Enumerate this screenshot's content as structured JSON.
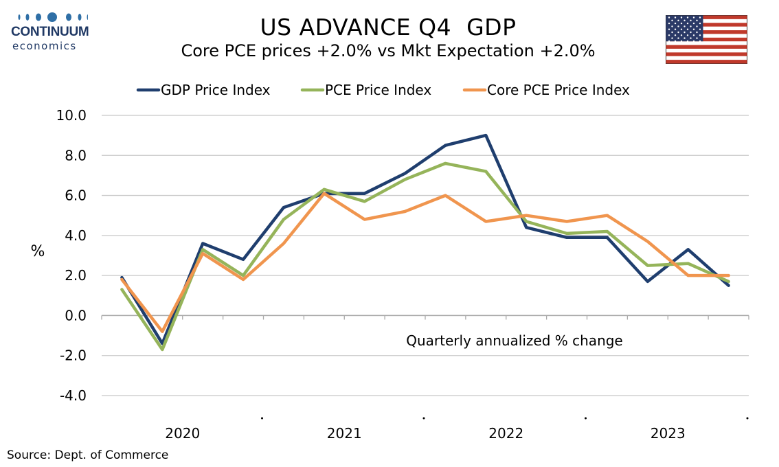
{
  "logo": {
    "brand_line1": "CONTINUUM",
    "brand_line2": "economics"
  },
  "title": "US ADVANCE Q4  GDP",
  "subtitle": "Core PCE prices +2.0% vs Mkt Expectation +2.0%",
  "source": "Source: Dept. of Commerce",
  "chart_data": {
    "type": "line",
    "ylabel": "%",
    "xlabel": "",
    "annotation": "Quarterly annualized % change",
    "ylim": [
      -4.0,
      10.0
    ],
    "yticks": [
      "10.0",
      "8.0",
      "6.0",
      "4.0",
      "2.0",
      "0.0",
      "-2.0",
      "-4.0"
    ],
    "x": [
      "2020 Q1",
      "2020 Q2",
      "2020 Q3",
      "2020 Q4",
      "2021 Q1",
      "2021 Q2",
      "2021 Q3",
      "2021 Q4",
      "2022 Q1",
      "2022 Q2",
      "2022 Q3",
      "2022 Q4",
      "2023 Q1",
      "2023 Q2",
      "2023 Q3",
      "2023 Q4"
    ],
    "year_labels": [
      "2020",
      "2021",
      "2022",
      "2023"
    ],
    "grid": true,
    "legend_position": "top",
    "series": [
      {
        "name": "GDP Price Index",
        "color": "#1f3e6e",
        "values": [
          1.9,
          -1.4,
          3.6,
          2.8,
          5.4,
          6.1,
          6.1,
          7.1,
          8.5,
          9.0,
          4.4,
          3.9,
          3.9,
          1.7,
          3.3,
          1.5
        ]
      },
      {
        "name": "PCE Price Index",
        "color": "#95b45a",
        "values": [
          1.3,
          -1.7,
          3.3,
          2.0,
          4.8,
          6.3,
          5.7,
          6.8,
          7.6,
          7.2,
          4.7,
          4.1,
          4.2,
          2.5,
          2.6,
          1.7
        ]
      },
      {
        "name": "Core PCE Price Index",
        "color": "#f0954e",
        "values": [
          1.8,
          -0.8,
          3.1,
          1.8,
          3.6,
          6.1,
          4.8,
          5.2,
          6.0,
          4.7,
          5.0,
          4.7,
          5.0,
          3.7,
          2.0,
          2.0
        ]
      }
    ]
  }
}
